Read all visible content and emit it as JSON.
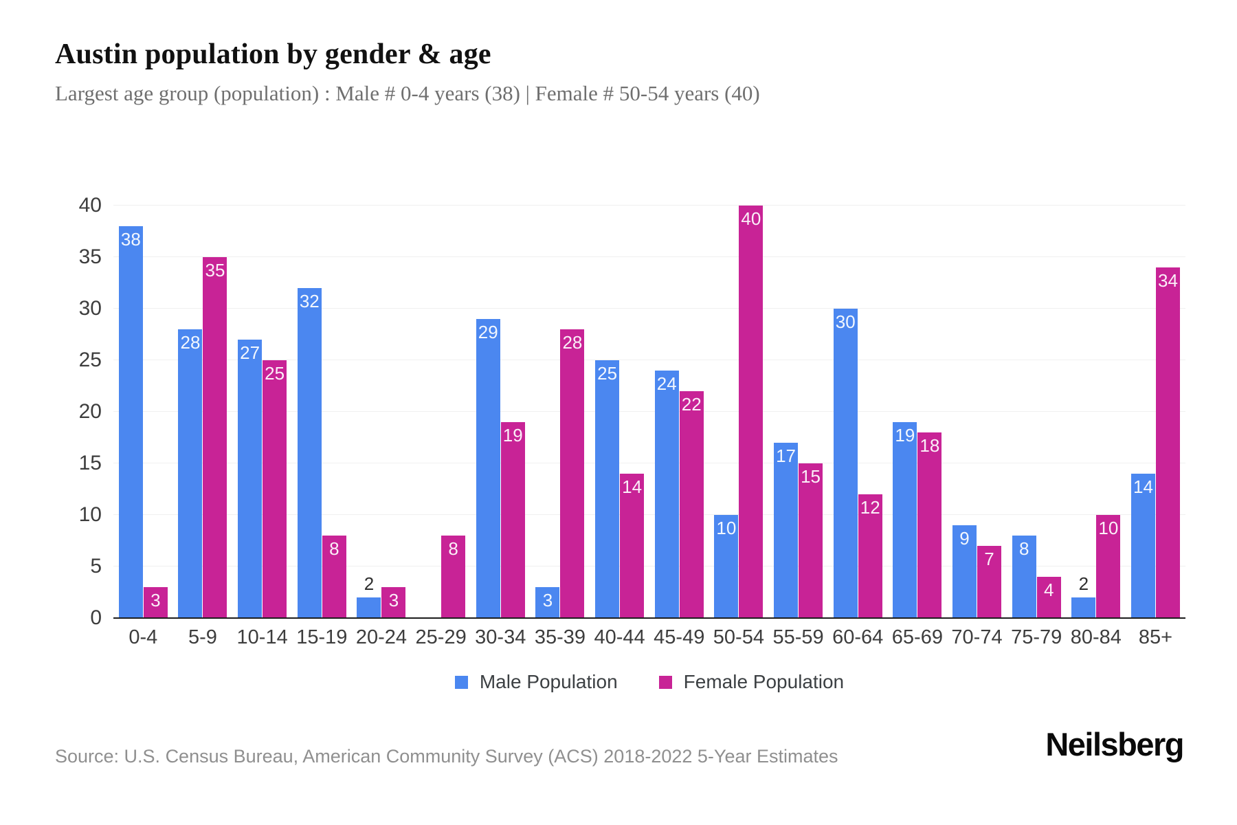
{
  "header": {
    "title": "Austin population by gender & age",
    "subtitle": "Largest age group (population) : Male # 0-4 years (38) | Female # 50-54 years (40)"
  },
  "chart_data": {
    "type": "bar",
    "title": "Austin population by gender & age",
    "categories": [
      "0-4",
      "5-9",
      "10-14",
      "15-19",
      "20-24",
      "25-29",
      "30-34",
      "35-39",
      "40-44",
      "45-49",
      "50-54",
      "55-59",
      "60-64",
      "65-69",
      "70-74",
      "75-79",
      "80-84",
      "85+"
    ],
    "series": [
      {
        "name": "Male Population",
        "color": "#4B87F0",
        "values": [
          38,
          28,
          27,
          32,
          2,
          0,
          29,
          3,
          25,
          24,
          10,
          17,
          30,
          19,
          9,
          8,
          2,
          14
        ]
      },
      {
        "name": "Female Population",
        "color": "#C82396",
        "values": [
          3,
          35,
          25,
          8,
          3,
          8,
          19,
          28,
          14,
          22,
          40,
          15,
          12,
          18,
          7,
          4,
          10,
          34
        ]
      }
    ],
    "xlabel": "",
    "ylabel": "",
    "ylim": [
      0,
      40
    ],
    "yticks": [
      0,
      5,
      10,
      15,
      20,
      25,
      30,
      35,
      40
    ],
    "grid": "horizontal",
    "legend_position": "bottom",
    "value_labels": true
  },
  "footer": {
    "source": "Source: U.S. Census Bureau, American Community Survey (ACS) 2018-2022 5-Year Estimates",
    "brand": "Neilsberg"
  }
}
